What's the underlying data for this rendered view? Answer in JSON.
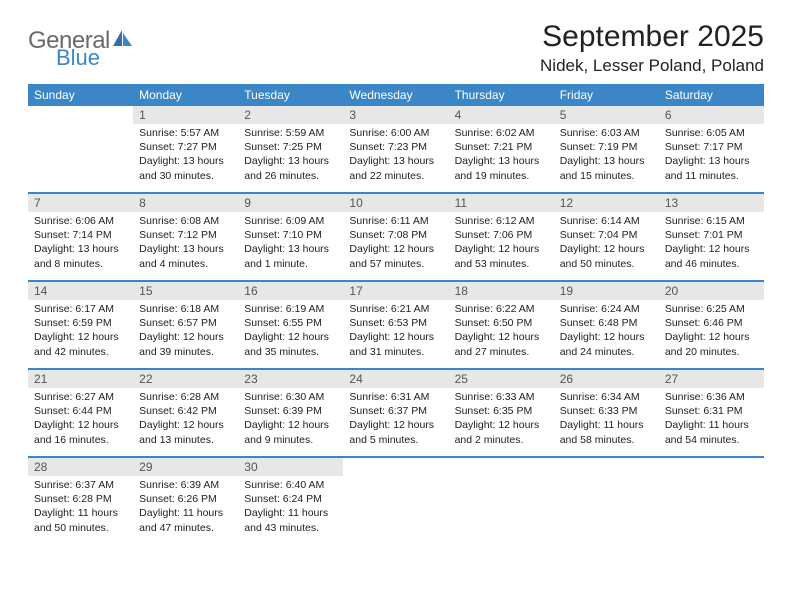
{
  "logo": {
    "line1": "General",
    "line2": "Blue",
    "text_color": "#6a6a6a",
    "blue_color": "#3b86c6"
  },
  "title": "September 2025",
  "location": "Nidek, Lesser Poland, Poland",
  "colors": {
    "header_bg": "#3b86c6",
    "header_text": "#ffffff",
    "daynum_bg": "#e7e7e7",
    "daynum_text": "#555555",
    "body_text": "#222222",
    "rule": "#3b86c6",
    "page_bg": "#ffffff"
  },
  "typography": {
    "title_fontsize": 30,
    "location_fontsize": 17,
    "header_fontsize": 12,
    "daynum_fontsize": 12,
    "body_fontsize": 10.5
  },
  "day_labels": [
    "Sunday",
    "Monday",
    "Tuesday",
    "Wednesday",
    "Thursday",
    "Friday",
    "Saturday"
  ],
  "weeks": [
    [
      {
        "n": "",
        "lines": []
      },
      {
        "n": "1",
        "lines": [
          "Sunrise: 5:57 AM",
          "Sunset: 7:27 PM",
          "Daylight: 13 hours",
          "and 30 minutes."
        ]
      },
      {
        "n": "2",
        "lines": [
          "Sunrise: 5:59 AM",
          "Sunset: 7:25 PM",
          "Daylight: 13 hours",
          "and 26 minutes."
        ]
      },
      {
        "n": "3",
        "lines": [
          "Sunrise: 6:00 AM",
          "Sunset: 7:23 PM",
          "Daylight: 13 hours",
          "and 22 minutes."
        ]
      },
      {
        "n": "4",
        "lines": [
          "Sunrise: 6:02 AM",
          "Sunset: 7:21 PM",
          "Daylight: 13 hours",
          "and 19 minutes."
        ]
      },
      {
        "n": "5",
        "lines": [
          "Sunrise: 6:03 AM",
          "Sunset: 7:19 PM",
          "Daylight: 13 hours",
          "and 15 minutes."
        ]
      },
      {
        "n": "6",
        "lines": [
          "Sunrise: 6:05 AM",
          "Sunset: 7:17 PM",
          "Daylight: 13 hours",
          "and 11 minutes."
        ]
      }
    ],
    [
      {
        "n": "7",
        "lines": [
          "Sunrise: 6:06 AM",
          "Sunset: 7:14 PM",
          "Daylight: 13 hours",
          "and 8 minutes."
        ]
      },
      {
        "n": "8",
        "lines": [
          "Sunrise: 6:08 AM",
          "Sunset: 7:12 PM",
          "Daylight: 13 hours",
          "and 4 minutes."
        ]
      },
      {
        "n": "9",
        "lines": [
          "Sunrise: 6:09 AM",
          "Sunset: 7:10 PM",
          "Daylight: 13 hours",
          "and 1 minute."
        ]
      },
      {
        "n": "10",
        "lines": [
          "Sunrise: 6:11 AM",
          "Sunset: 7:08 PM",
          "Daylight: 12 hours",
          "and 57 minutes."
        ]
      },
      {
        "n": "11",
        "lines": [
          "Sunrise: 6:12 AM",
          "Sunset: 7:06 PM",
          "Daylight: 12 hours",
          "and 53 minutes."
        ]
      },
      {
        "n": "12",
        "lines": [
          "Sunrise: 6:14 AM",
          "Sunset: 7:04 PM",
          "Daylight: 12 hours",
          "and 50 minutes."
        ]
      },
      {
        "n": "13",
        "lines": [
          "Sunrise: 6:15 AM",
          "Sunset: 7:01 PM",
          "Daylight: 12 hours",
          "and 46 minutes."
        ]
      }
    ],
    [
      {
        "n": "14",
        "lines": [
          "Sunrise: 6:17 AM",
          "Sunset: 6:59 PM",
          "Daylight: 12 hours",
          "and 42 minutes."
        ]
      },
      {
        "n": "15",
        "lines": [
          "Sunrise: 6:18 AM",
          "Sunset: 6:57 PM",
          "Daylight: 12 hours",
          "and 39 minutes."
        ]
      },
      {
        "n": "16",
        "lines": [
          "Sunrise: 6:19 AM",
          "Sunset: 6:55 PM",
          "Daylight: 12 hours",
          "and 35 minutes."
        ]
      },
      {
        "n": "17",
        "lines": [
          "Sunrise: 6:21 AM",
          "Sunset: 6:53 PM",
          "Daylight: 12 hours",
          "and 31 minutes."
        ]
      },
      {
        "n": "18",
        "lines": [
          "Sunrise: 6:22 AM",
          "Sunset: 6:50 PM",
          "Daylight: 12 hours",
          "and 27 minutes."
        ]
      },
      {
        "n": "19",
        "lines": [
          "Sunrise: 6:24 AM",
          "Sunset: 6:48 PM",
          "Daylight: 12 hours",
          "and 24 minutes."
        ]
      },
      {
        "n": "20",
        "lines": [
          "Sunrise: 6:25 AM",
          "Sunset: 6:46 PM",
          "Daylight: 12 hours",
          "and 20 minutes."
        ]
      }
    ],
    [
      {
        "n": "21",
        "lines": [
          "Sunrise: 6:27 AM",
          "Sunset: 6:44 PM",
          "Daylight: 12 hours",
          "and 16 minutes."
        ]
      },
      {
        "n": "22",
        "lines": [
          "Sunrise: 6:28 AM",
          "Sunset: 6:42 PM",
          "Daylight: 12 hours",
          "and 13 minutes."
        ]
      },
      {
        "n": "23",
        "lines": [
          "Sunrise: 6:30 AM",
          "Sunset: 6:39 PM",
          "Daylight: 12 hours",
          "and 9 minutes."
        ]
      },
      {
        "n": "24",
        "lines": [
          "Sunrise: 6:31 AM",
          "Sunset: 6:37 PM",
          "Daylight: 12 hours",
          "and 5 minutes."
        ]
      },
      {
        "n": "25",
        "lines": [
          "Sunrise: 6:33 AM",
          "Sunset: 6:35 PM",
          "Daylight: 12 hours",
          "and 2 minutes."
        ]
      },
      {
        "n": "26",
        "lines": [
          "Sunrise: 6:34 AM",
          "Sunset: 6:33 PM",
          "Daylight: 11 hours",
          "and 58 minutes."
        ]
      },
      {
        "n": "27",
        "lines": [
          "Sunrise: 6:36 AM",
          "Sunset: 6:31 PM",
          "Daylight: 11 hours",
          "and 54 minutes."
        ]
      }
    ],
    [
      {
        "n": "28",
        "lines": [
          "Sunrise: 6:37 AM",
          "Sunset: 6:28 PM",
          "Daylight: 11 hours",
          "and 50 minutes."
        ]
      },
      {
        "n": "29",
        "lines": [
          "Sunrise: 6:39 AM",
          "Sunset: 6:26 PM",
          "Daylight: 11 hours",
          "and 47 minutes."
        ]
      },
      {
        "n": "30",
        "lines": [
          "Sunrise: 6:40 AM",
          "Sunset: 6:24 PM",
          "Daylight: 11 hours",
          "and 43 minutes."
        ]
      },
      {
        "n": "",
        "lines": []
      },
      {
        "n": "",
        "lines": []
      },
      {
        "n": "",
        "lines": []
      },
      {
        "n": "",
        "lines": []
      }
    ]
  ]
}
